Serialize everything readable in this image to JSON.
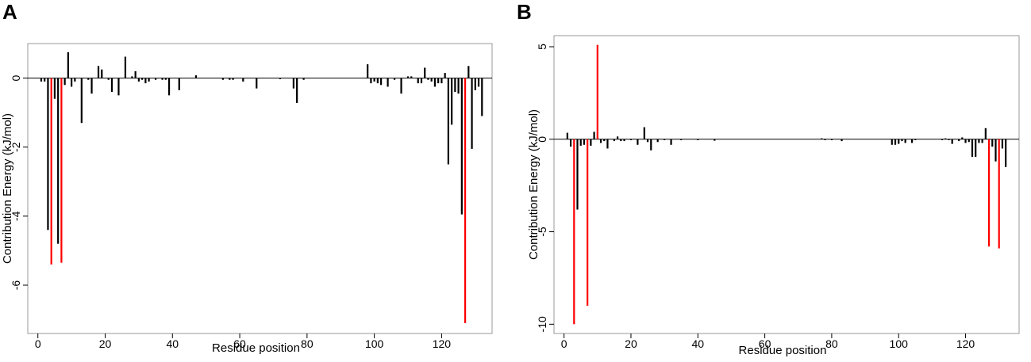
{
  "panels": [
    {
      "label": "A"
    },
    {
      "label": "B"
    }
  ],
  "colors": {
    "normal_bar": "#000000",
    "highlight_bar": "#ff0000",
    "frame": "#999999",
    "zero_line": "#000000"
  },
  "chart_data": [
    {
      "type": "bar",
      "panel": "A",
      "title": "",
      "xlabel": "Residue position",
      "ylabel": "Contribution Energy (kJ/mol)",
      "xlim": [
        -3,
        135
      ],
      "ylim": [
        -7.4,
        1.0
      ],
      "xticks": [
        0,
        20,
        40,
        60,
        80,
        100,
        120
      ],
      "yticks": [
        0,
        -2,
        -4,
        -6
      ],
      "grid": false,
      "bars": [
        {
          "x": 1,
          "y": -0.1
        },
        {
          "x": 2,
          "y": -0.1
        },
        {
          "x": 3,
          "y": -4.4
        },
        {
          "x": 4,
          "y": -5.4,
          "highlight": true
        },
        {
          "x": 5,
          "y": -0.6
        },
        {
          "x": 6,
          "y": -4.8
        },
        {
          "x": 7,
          "y": -5.35,
          "highlight": true
        },
        {
          "x": 8,
          "y": -0.2
        },
        {
          "x": 9,
          "y": 0.75
        },
        {
          "x": 10,
          "y": -0.25
        },
        {
          "x": 11,
          "y": -0.1
        },
        {
          "x": 13,
          "y": -1.3
        },
        {
          "x": 15,
          "y": -0.05
        },
        {
          "x": 16,
          "y": -0.45
        },
        {
          "x": 18,
          "y": 0.35
        },
        {
          "x": 19,
          "y": 0.25
        },
        {
          "x": 21,
          "y": -0.05
        },
        {
          "x": 22,
          "y": -0.4
        },
        {
          "x": 24,
          "y": -0.5
        },
        {
          "x": 26,
          "y": 0.62
        },
        {
          "x": 28,
          "y": 0.05
        },
        {
          "x": 29,
          "y": 0.2
        },
        {
          "x": 30,
          "y": -0.1
        },
        {
          "x": 31,
          "y": -0.05
        },
        {
          "x": 32,
          "y": -0.15
        },
        {
          "x": 33,
          "y": -0.1
        },
        {
          "x": 35,
          "y": -0.05
        },
        {
          "x": 37,
          "y": -0.05
        },
        {
          "x": 38,
          "y": -0.05
        },
        {
          "x": 39,
          "y": -0.5
        },
        {
          "x": 42,
          "y": -0.35
        },
        {
          "x": 47,
          "y": 0.08
        },
        {
          "x": 55,
          "y": -0.05
        },
        {
          "x": 57,
          "y": -0.05
        },
        {
          "x": 58,
          "y": -0.05
        },
        {
          "x": 61,
          "y": -0.1
        },
        {
          "x": 65,
          "y": -0.3
        },
        {
          "x": 72,
          "y": -0.03
        },
        {
          "x": 76,
          "y": -0.3
        },
        {
          "x": 77,
          "y": -0.72
        },
        {
          "x": 79,
          "y": -0.05
        },
        {
          "x": 98,
          "y": 0.4
        },
        {
          "x": 99,
          "y": -0.15
        },
        {
          "x": 100,
          "y": -0.1
        },
        {
          "x": 101,
          "y": -0.15
        },
        {
          "x": 102,
          "y": -0.2
        },
        {
          "x": 104,
          "y": -0.25
        },
        {
          "x": 106,
          "y": -0.05
        },
        {
          "x": 108,
          "y": -0.45
        },
        {
          "x": 110,
          "y": 0.05
        },
        {
          "x": 111,
          "y": 0.05
        },
        {
          "x": 113,
          "y": -0.15
        },
        {
          "x": 114,
          "y": -0.15
        },
        {
          "x": 115,
          "y": 0.3
        },
        {
          "x": 116,
          "y": -0.05
        },
        {
          "x": 117,
          "y": -0.1
        },
        {
          "x": 118,
          "y": -0.25
        },
        {
          "x": 119,
          "y": -0.15
        },
        {
          "x": 120,
          "y": -0.15
        },
        {
          "x": 121,
          "y": 0.15
        },
        {
          "x": 122,
          "y": -2.5
        },
        {
          "x": 123,
          "y": -1.35
        },
        {
          "x": 124,
          "y": -0.4
        },
        {
          "x": 125,
          "y": -0.45
        },
        {
          "x": 126,
          "y": -3.95
        },
        {
          "x": 127,
          "y": -7.1,
          "highlight": true
        },
        {
          "x": 128,
          "y": 0.35
        },
        {
          "x": 129,
          "y": -2.05
        },
        {
          "x": 130,
          "y": -0.35
        },
        {
          "x": 131,
          "y": -0.25
        },
        {
          "x": 132,
          "y": -1.1
        }
      ]
    },
    {
      "type": "bar",
      "panel": "B",
      "title": "",
      "xlabel": "Residue position",
      "ylabel": "Contribution Energy (kJ/mol)",
      "xlim": [
        -3,
        136
      ],
      "ylim": [
        -10.5,
        5.6
      ],
      "xticks": [
        0,
        20,
        40,
        60,
        80,
        100,
        120
      ],
      "yticks": [
        5,
        0,
        -5,
        -10
      ],
      "grid": false,
      "bars": [
        {
          "x": 1,
          "y": 0.35
        },
        {
          "x": 2,
          "y": -0.4
        },
        {
          "x": 3,
          "y": -10.0,
          "highlight": true
        },
        {
          "x": 4,
          "y": -3.8
        },
        {
          "x": 5,
          "y": -0.35
        },
        {
          "x": 6,
          "y": -0.3
        },
        {
          "x": 7,
          "y": -9.0,
          "highlight": true
        },
        {
          "x": 8,
          "y": -0.35
        },
        {
          "x": 9,
          "y": 0.4
        },
        {
          "x": 10,
          "y": 5.1,
          "highlight": true
        },
        {
          "x": 11,
          "y": -0.2
        },
        {
          "x": 12,
          "y": -0.1
        },
        {
          "x": 13,
          "y": -0.5
        },
        {
          "x": 15,
          "y": -0.1
        },
        {
          "x": 16,
          "y": 0.15
        },
        {
          "x": 17,
          "y": -0.1
        },
        {
          "x": 18,
          "y": -0.1
        },
        {
          "x": 20,
          "y": -0.05
        },
        {
          "x": 22,
          "y": -0.3
        },
        {
          "x": 24,
          "y": 0.65
        },
        {
          "x": 25,
          "y": -0.15
        },
        {
          "x": 26,
          "y": -0.6
        },
        {
          "x": 28,
          "y": -0.15
        },
        {
          "x": 30,
          "y": -0.05
        },
        {
          "x": 32,
          "y": -0.3
        },
        {
          "x": 35,
          "y": -0.05
        },
        {
          "x": 40,
          "y": -0.05
        },
        {
          "x": 45,
          "y": -0.08
        },
        {
          "x": 77,
          "y": 0.05
        },
        {
          "x": 78,
          "y": -0.05
        },
        {
          "x": 80,
          "y": -0.05
        },
        {
          "x": 83,
          "y": -0.1
        },
        {
          "x": 98,
          "y": -0.3
        },
        {
          "x": 99,
          "y": -0.3
        },
        {
          "x": 100,
          "y": -0.25
        },
        {
          "x": 101,
          "y": -0.1
        },
        {
          "x": 102,
          "y": -0.2
        },
        {
          "x": 104,
          "y": -0.2
        },
        {
          "x": 105,
          "y": -0.05
        },
        {
          "x": 113,
          "y": -0.05
        },
        {
          "x": 114,
          "y": 0.05
        },
        {
          "x": 115,
          "y": -0.05
        },
        {
          "x": 116,
          "y": -0.25
        },
        {
          "x": 118,
          "y": -0.1
        },
        {
          "x": 119,
          "y": 0.1
        },
        {
          "x": 120,
          "y": -0.2
        },
        {
          "x": 121,
          "y": -0.15
        },
        {
          "x": 122,
          "y": -0.95
        },
        {
          "x": 123,
          "y": -0.95
        },
        {
          "x": 124,
          "y": -0.2
        },
        {
          "x": 125,
          "y": -0.2
        },
        {
          "x": 126,
          "y": 0.6
        },
        {
          "x": 127,
          "y": -5.8,
          "highlight": true
        },
        {
          "x": 128,
          "y": -0.4
        },
        {
          "x": 129,
          "y": -1.2
        },
        {
          "x": 130,
          "y": -5.9,
          "highlight": true
        },
        {
          "x": 131,
          "y": -0.5
        },
        {
          "x": 132,
          "y": -1.5
        }
      ]
    }
  ]
}
